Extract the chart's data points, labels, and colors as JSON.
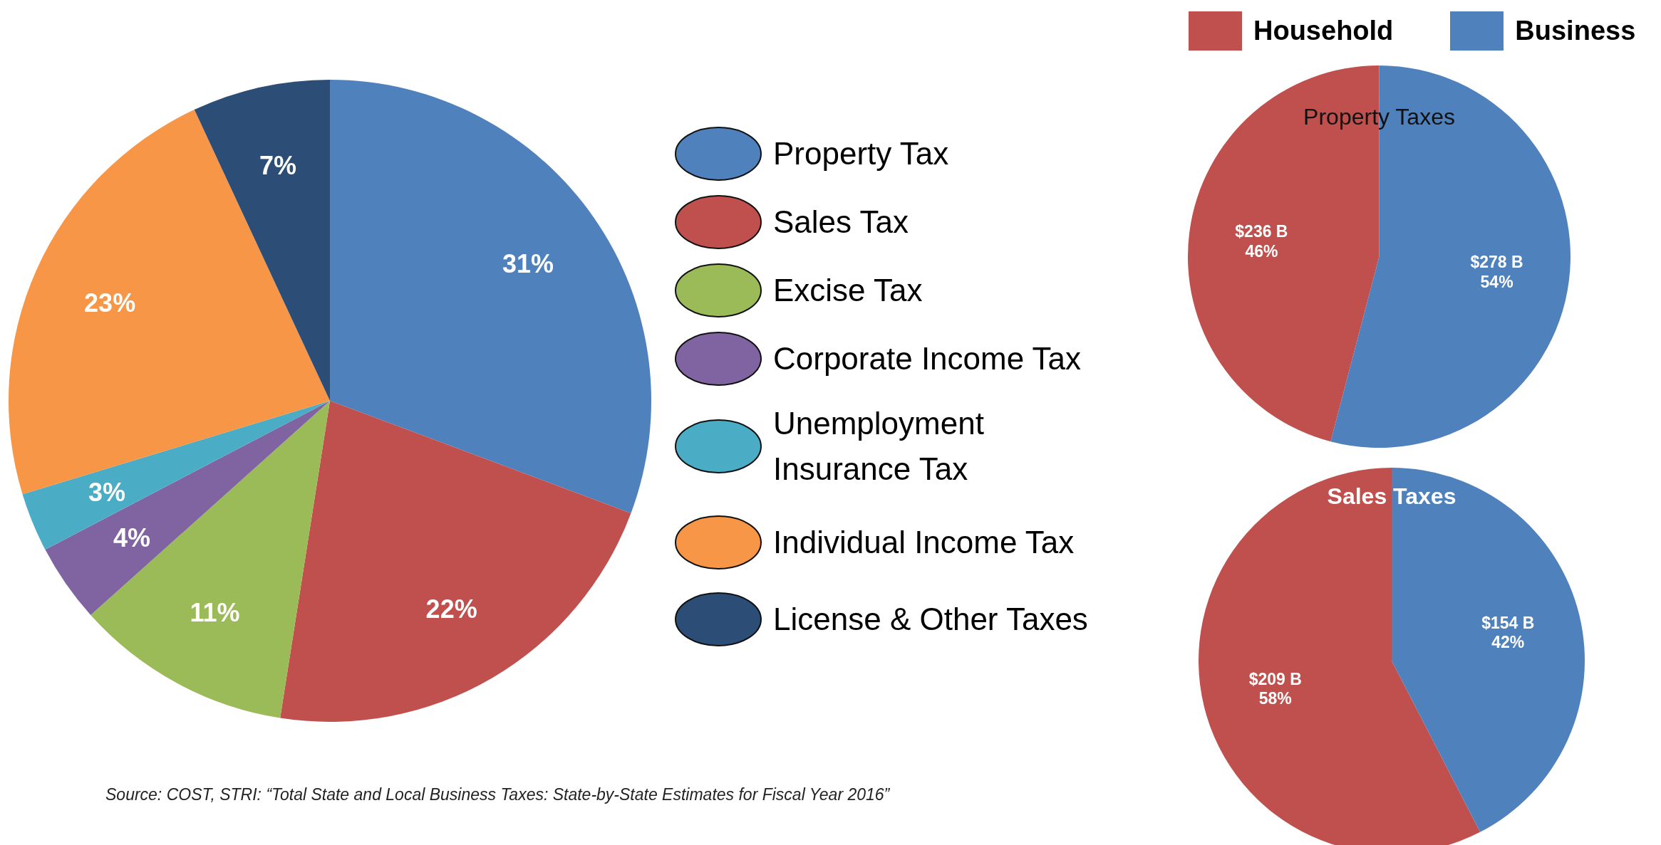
{
  "chart_data": [
    {
      "type": "pie",
      "categories": [
        "Property Tax",
        "Sales Tax",
        "Excise Tax",
        "Corporate Income Tax",
        "Unemployment Insurance Tax",
        "Individual Income Tax",
        "License & Other Taxes"
      ],
      "values": [
        31,
        22,
        11,
        4,
        3,
        23,
        7
      ],
      "colors": [
        "#4f81bd",
        "#c0504d",
        "#9bbb59",
        "#8064a2",
        "#4bacc6",
        "#f79646",
        "#2c4d75"
      ],
      "value_labels": [
        "31%",
        "22%",
        "11%",
        "4%",
        "3%",
        "23%",
        "7%"
      ],
      "legend": "right",
      "annotations": [
        "Source: COST, STRI: “Total State and Local Business Taxes: State-by-State Estimates for Fiscal Year 2016”"
      ]
    },
    {
      "type": "pie",
      "title": "Property Taxes",
      "categories": [
        "Household",
        "Business"
      ],
      "values": [
        236,
        278
      ],
      "colors": [
        "#c0504d",
        "#4f81bd"
      ],
      "value_labels": [
        "$236 B\n46%",
        "$278 B\n54%"
      ],
      "legend": "top"
    },
    {
      "type": "pie",
      "title": "Sales Taxes",
      "categories": [
        null,
        null
      ],
      "values": [
        209,
        154
      ],
      "colors": [
        "#c0504d",
        "#4f81bd"
      ],
      "value_labels": [
        "$209 B\n58%",
        "$154 B\n42%"
      ]
    }
  ]
}
